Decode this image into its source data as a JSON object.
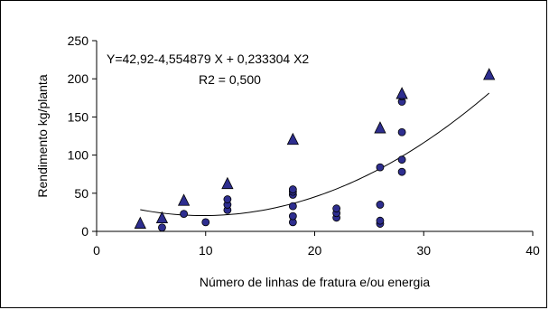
{
  "chart_data": {
    "type": "scatter",
    "title": "",
    "xlabel": "Número de linhas de fratura e/ou energia",
    "ylabel": "Rendimento kg/planta",
    "xlim": [
      0,
      40
    ],
    "ylim": [
      0,
      250
    ],
    "x_ticks": [
      "0",
      "10",
      "20",
      "30",
      "40"
    ],
    "y_ticks": [
      "0",
      "50",
      "100",
      "150",
      "200",
      "250"
    ],
    "grid": false,
    "legend": "none",
    "annotations": {
      "equation": "Y=42,92-4,554879 X + 0,233304 X2",
      "r2": "R2 = 0,500"
    },
    "series": [
      {
        "marker": "circle",
        "color": "#2e2e8f",
        "points": [
          [
            6,
            5
          ],
          [
            8,
            23
          ],
          [
            10,
            12
          ],
          [
            12,
            28
          ],
          [
            12,
            35
          ],
          [
            12,
            42
          ],
          [
            18,
            12
          ],
          [
            18,
            20
          ],
          [
            18,
            33
          ],
          [
            18,
            48
          ],
          [
            18,
            52
          ],
          [
            18,
            55
          ],
          [
            22,
            18
          ],
          [
            22,
            24
          ],
          [
            22,
            30
          ],
          [
            26,
            10
          ],
          [
            26,
            14
          ],
          [
            26,
            35
          ],
          [
            26,
            84
          ],
          [
            28,
            78
          ],
          [
            28,
            94
          ],
          [
            28,
            130
          ],
          [
            28,
            170
          ],
          [
            28,
            177
          ]
        ]
      },
      {
        "marker": "triangle",
        "color": "#2e2e8f",
        "points": [
          [
            4,
            10
          ],
          [
            6,
            17
          ],
          [
            8,
            40
          ],
          [
            12,
            62
          ],
          [
            18,
            120
          ],
          [
            26,
            135
          ],
          [
            28,
            180
          ],
          [
            36,
            205
          ]
        ]
      }
    ],
    "trendline": {
      "type": "polynomial",
      "coefficients": [
        42.92,
        -4.554879,
        0.233304
      ],
      "x_range": [
        4,
        36
      ],
      "color": "#000000"
    }
  }
}
